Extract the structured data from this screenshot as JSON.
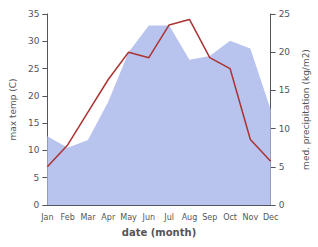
{
  "chart_data": {
    "type": "line",
    "categories": [
      "Jan",
      "Feb",
      "Mar",
      "Apr",
      "May",
      "Jun",
      "Jul",
      "Aug",
      "Sep",
      "Oct",
      "Nov",
      "Dec"
    ],
    "series": [
      {
        "type": "area",
        "color": "#b8c4ee",
        "axis": "y2",
        "values": [
          9,
          7.5,
          8.5,
          13.5,
          20,
          23.5,
          23.5,
          19,
          19.5,
          21.5,
          20.5,
          12.5
        ]
      },
      {
        "type": "line",
        "color": "#aa3333",
        "values": [
          7,
          11,
          17,
          23,
          28,
          27,
          33,
          34,
          27,
          25,
          12,
          8
        ]
      }
    ],
    "xlabel": "date (month)",
    "ylabel": "max temp (C)",
    "y2label": "med. precipitation (kg/m2)",
    "ylim": [
      0,
      35
    ],
    "yticks": [
      0,
      5,
      10,
      15,
      20,
      25,
      30,
      35
    ],
    "y2lim": [
      0,
      25
    ],
    "y2ticks": [
      0,
      5,
      10,
      15,
      20,
      25
    ],
    "grid": false
  }
}
